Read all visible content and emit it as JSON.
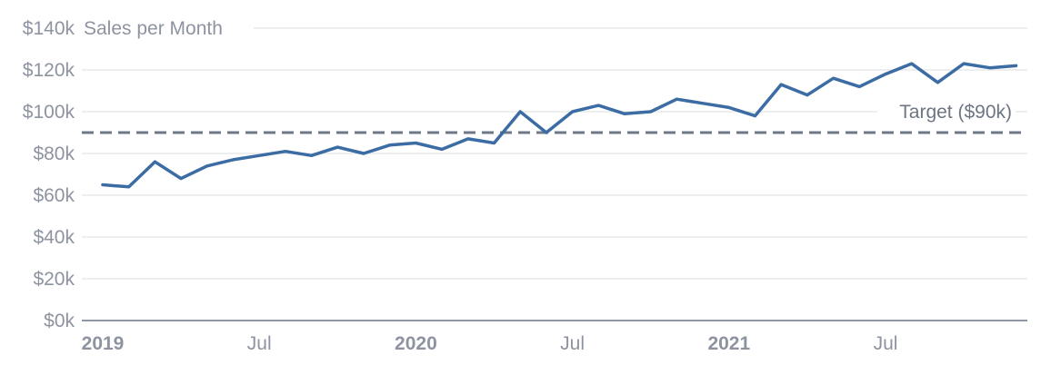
{
  "chart_data": {
    "type": "line",
    "title": "Sales per Month",
    "unit": "USD thousands",
    "x": [
      "Jan 2019",
      "Feb 2019",
      "Mar 2019",
      "Apr 2019",
      "May 2019",
      "Jun 2019",
      "Jul 2019",
      "Aug 2019",
      "Sep 2019",
      "Oct 2019",
      "Nov 2019",
      "Dec 2019",
      "Jan 2020",
      "Feb 2020",
      "Mar 2020",
      "Apr 2020",
      "May 2020",
      "Jun 2020",
      "Jul 2020",
      "Aug 2020",
      "Sep 2020",
      "Oct 2020",
      "Nov 2020",
      "Dec 2020",
      "Jan 2021",
      "Feb 2021",
      "Mar 2021",
      "Apr 2021",
      "May 2021",
      "Jun 2021",
      "Jul 2021",
      "Aug 2021",
      "Sep 2021",
      "Oct 2021",
      "Nov 2021",
      "Dec 2021"
    ],
    "series": [
      {
        "name": "Sales per Month",
        "values": [
          65,
          64,
          76,
          68,
          74,
          77,
          79,
          81,
          79,
          83,
          80,
          84,
          85,
          82,
          87,
          85,
          100,
          90,
          100,
          103,
          99,
          100,
          106,
          104,
          102,
          98,
          113,
          108,
          116,
          112,
          118,
          123,
          114,
          123,
          121,
          122
        ]
      }
    ],
    "target": {
      "value": 90,
      "label": "Target ($90k)"
    },
    "ylim": [
      0,
      140
    ],
    "grid": true,
    "legend": "none",
    "yticks": [
      {
        "value": 140,
        "label": "$140k"
      },
      {
        "value": 120,
        "label": "$120k"
      },
      {
        "value": 100,
        "label": "$100k"
      },
      {
        "value": 80,
        "label": "$80k"
      },
      {
        "value": 60,
        "label": "$60k"
      },
      {
        "value": 40,
        "label": "$40k"
      },
      {
        "value": 20,
        "label": "$20k"
      },
      {
        "value": 0,
        "label": "$0k"
      }
    ],
    "xticks": [
      {
        "index": 0,
        "label": "2019",
        "bold": true
      },
      {
        "index": 6,
        "label": "Jul",
        "bold": false
      },
      {
        "index": 12,
        "label": "2020",
        "bold": true
      },
      {
        "index": 18,
        "label": "Jul",
        "bold": false
      },
      {
        "index": 24,
        "label": "2021",
        "bold": true
      },
      {
        "index": 30,
        "label": "Jul",
        "bold": false
      }
    ],
    "colors": {
      "series_line": "#3b6ca3",
      "target_line": "#6e7887",
      "grid_line": "#e7e8ec",
      "axis_line": "#8e96a3",
      "tick_label": "#8d93a0",
      "title": "#8d93a0",
      "target_label": "#6d7583",
      "background": "#ffffff"
    }
  }
}
